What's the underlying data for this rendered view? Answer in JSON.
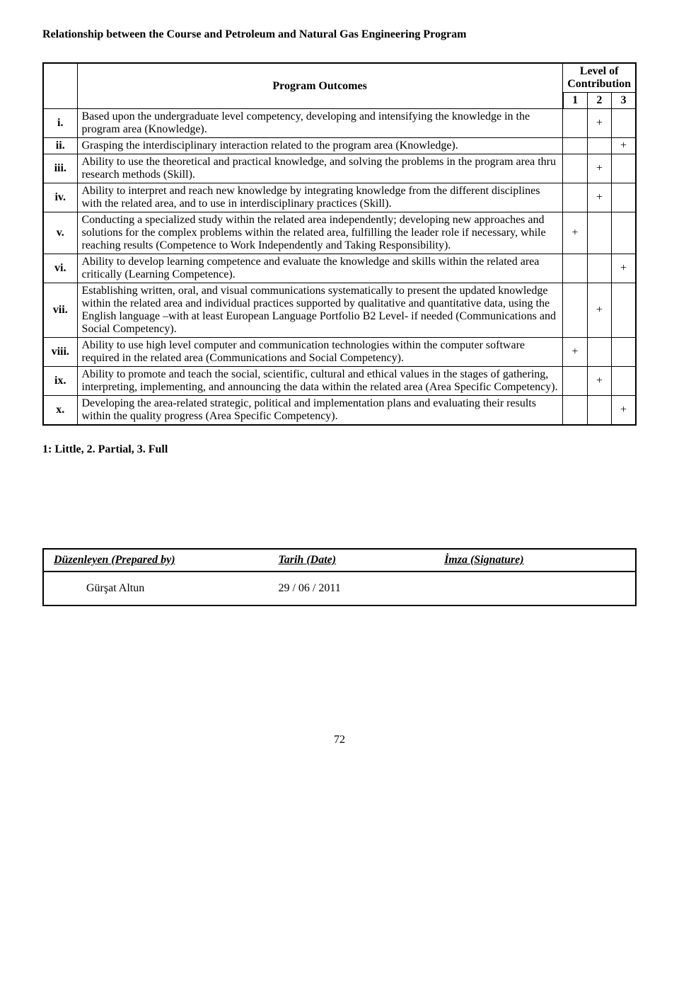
{
  "title": "Relationship between the Course and Petroleum and Natural Gas Engineering Program",
  "outcomes_header": "Program Outcomes",
  "contrib_header": "Level of Contribution",
  "contrib_levels": [
    "1",
    "2",
    "3"
  ],
  "rows": [
    {
      "num": "i.",
      "text": "Based upon the undergraduate level competency, developing and intensifying the knowledge in the program area (Knowledge).",
      "marks": [
        "",
        "+",
        ""
      ]
    },
    {
      "num": "ii.",
      "text": "Grasping the interdisciplinary interaction related to the program area (Knowledge).",
      "marks": [
        "",
        "",
        "+"
      ]
    },
    {
      "num": "iii.",
      "text": "Ability to use the theoretical and practical knowledge, and solving the problems in the program area thru research methods (Skill).",
      "marks": [
        "",
        "+",
        ""
      ]
    },
    {
      "num": "iv.",
      "text": "Ability to interpret and reach new knowledge by integrating knowledge from the different disciplines with the related area, and to use in interdisciplinary practices (Skill).",
      "marks": [
        "",
        "+",
        ""
      ]
    },
    {
      "num": "v.",
      "text": "Conducting a specialized study within the related area independently; developing new  approaches and solutions for the complex problems within the related area, fulfilling the leader role if necessary, while reaching results (Competence to Work Independently and Taking Responsibility).",
      "marks": [
        "+",
        "",
        ""
      ]
    },
    {
      "num": "vi.",
      "text": "Ability to develop learning competence and evaluate the knowledge and skills within the related area critically (Learning Competence).",
      "marks": [
        "",
        "",
        "+"
      ]
    },
    {
      "num": "vii.",
      "text": "Establishing written, oral, and visual communications systematically to present the updated knowledge within the related area and individual practices supported by qualitative and quantitative data, using the English language –with at least European Language Portfolio B2 Level- if needed (Communications and Social Competency).",
      "marks": [
        "",
        "+",
        ""
      ]
    },
    {
      "num": "viii.",
      "text": "Ability to use high level computer and communication technologies within the computer software required in the related area (Communications and Social Competency).",
      "marks": [
        "+",
        "",
        ""
      ]
    },
    {
      "num": "ix.",
      "text": "Ability to promote and teach the social, scientific, cultural and ethical values in the stages of gathering, interpreting, implementing, and announcing the data within the related area (Area Specific Competency).",
      "marks": [
        "",
        "+",
        ""
      ]
    },
    {
      "num": "x.",
      "text": "Developing the area-related strategic, political and implementation plans and evaluating their results within the quality progress (Area Specific Competency).",
      "marks": [
        "",
        "",
        "+"
      ]
    }
  ],
  "legend": "1: Little, 2. Partial, 3. Full",
  "sign_headers": {
    "prepared": "Düzenleyen (Prepared by)",
    "date": "Tarih (Date)",
    "sig": "İmza (Signature)"
  },
  "sign_values": {
    "prepared": "Gürşat Altun",
    "date": "29 / 06 / 2011",
    "sig": ""
  },
  "page_number": "72"
}
